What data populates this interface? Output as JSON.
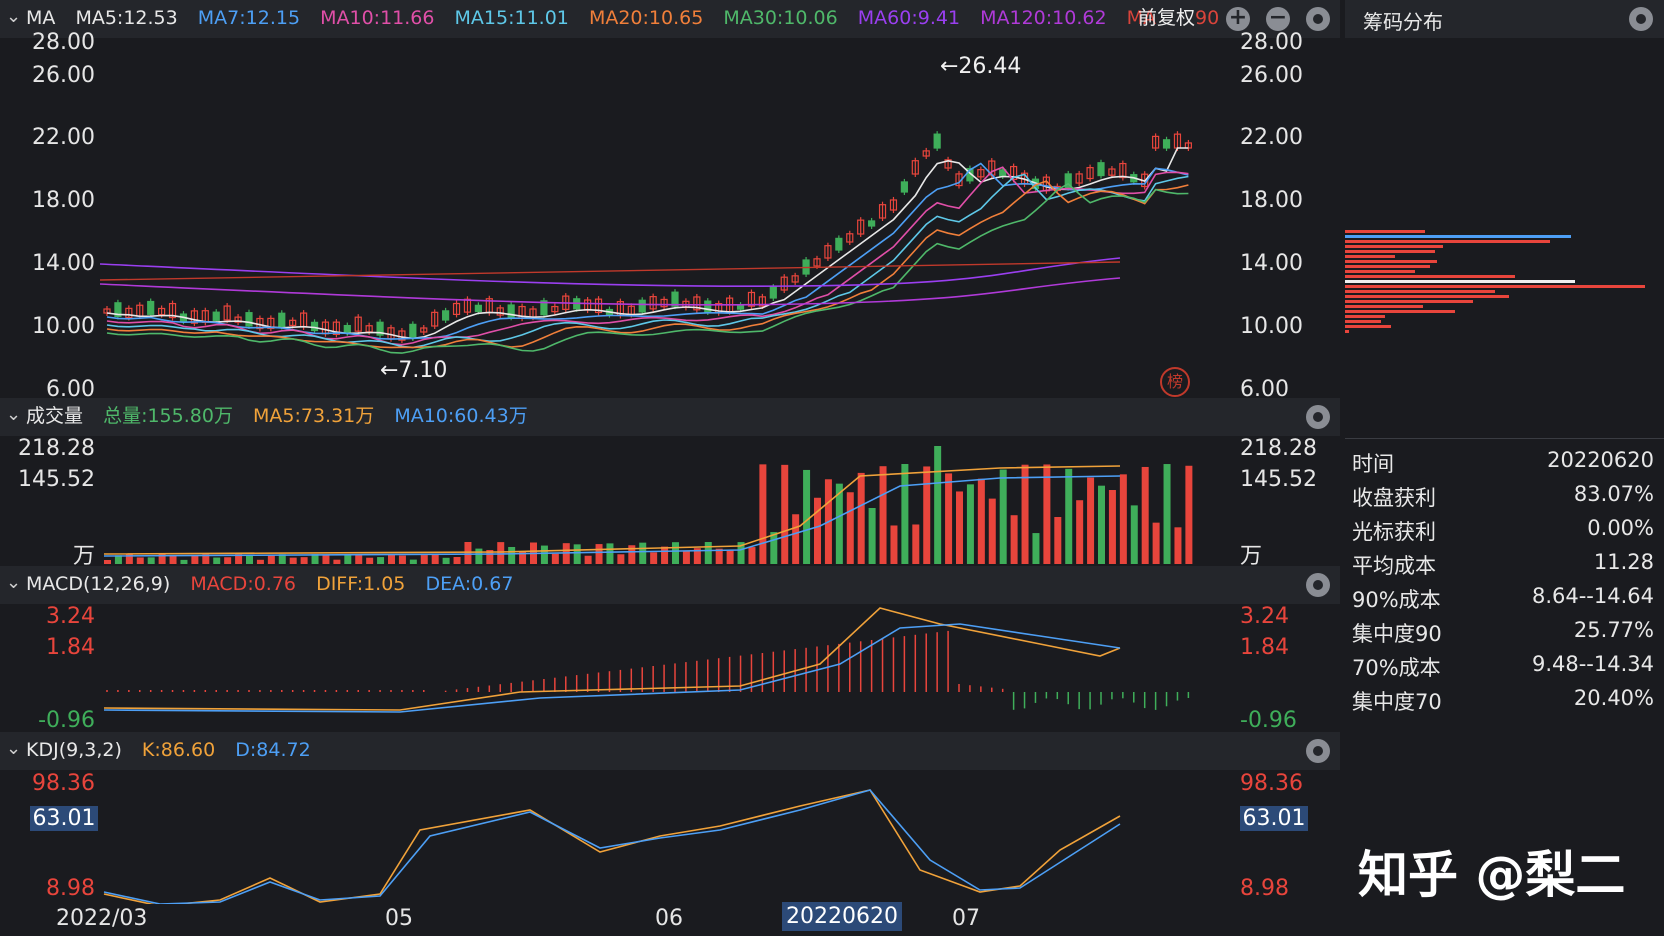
{
  "header": {
    "title": "MA",
    "ma_items": [
      {
        "text": "MA5:12.53",
        "color": "#e8e8e8"
      },
      {
        "text": "MA7:12.15",
        "color": "#4d9ff5"
      },
      {
        "text": "MA10:11.66",
        "color": "#e04fa8"
      },
      {
        "text": "MA15:11.01",
        "color": "#5ec8e8"
      },
      {
        "text": "MA20:10.65",
        "color": "#f07f3a"
      },
      {
        "text": "MA30:10.06",
        "color": "#4fb86a"
      },
      {
        "text": "MA60:9.41",
        "color": "#9a3ff0"
      },
      {
        "text": "MA120:10.62",
        "color": "#b03ad8"
      },
      {
        "text": "MA",
        "color": "#d9443b"
      }
    ],
    "adjust_label": "前复权",
    "adjust_suffix": "90"
  },
  "price_axis": {
    "ticks": [
      "28.00",
      "26.00",
      "22.00",
      "18.00",
      "14.00",
      "10.00",
      "6.00"
    ]
  },
  "price_annotations": {
    "high": "←26.44",
    "low": "←7.10"
  },
  "badge": "榜",
  "volume": {
    "title": "成交量",
    "total": "总量:155.80万",
    "ma5": "MA5:73.31万",
    "ma10": "MA10:60.43万",
    "ticks": [
      "218.28",
      "145.52"
    ],
    "unit": "万"
  },
  "macd": {
    "title": "MACD(12,26,9)",
    "macd": "MACD:0.76",
    "diff": "DIFF:1.05",
    "dea": "DEA:0.67",
    "ticks": [
      "3.24",
      "1.84",
      "-0.96"
    ]
  },
  "kdj": {
    "title": "KDJ(9,3,2)",
    "k": "K:86.60",
    "d": "D:84.72",
    "ticks": [
      "98.36",
      "63.01",
      "8.98"
    ]
  },
  "x_axis": [
    "2022/03",
    "05",
    "06",
    "20220620",
    "07"
  ],
  "side": {
    "title": "筹码分布",
    "rows": [
      {
        "k": "时间",
        "v": "20220620"
      },
      {
        "k": "收盘获利",
        "v": "83.07%"
      },
      {
        "k": "光标获利",
        "v": "0.00%"
      },
      {
        "k": "平均成本",
        "v": "11.28"
      },
      {
        "k": "90%成本",
        "v": "8.64--14.64"
      },
      {
        "k": "集中度90",
        "v": "25.77%"
      },
      {
        "k": "70%成本",
        "v": "9.48--14.34"
      },
      {
        "k": "集中度70",
        "v": "20.40%"
      }
    ],
    "watermark": "知乎 @梨二"
  },
  "colors": {
    "up": "#e8453c",
    "down": "#3fae5a",
    "bg": "#1a1b1f",
    "panel": "#24262b"
  }
}
